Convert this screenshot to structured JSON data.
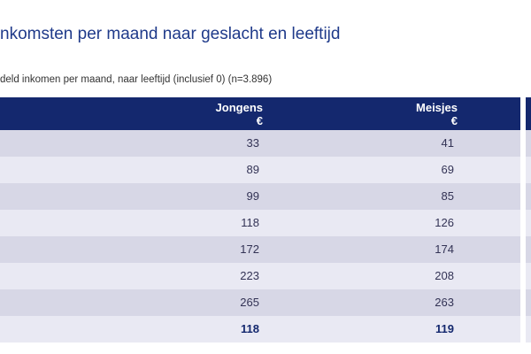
{
  "title": "nkomsten per maand naar geslacht en leeftijd",
  "subtitle": "deld inkomen per maand, naar leeftijd (inclusief 0) (n=3.896)",
  "table": {
    "header": [
      [
        "Jongens",
        "€"
      ],
      [
        "Meisjes",
        "€"
      ]
    ],
    "rows": [
      [
        33,
        41
      ],
      [
        89,
        69
      ],
      [
        99,
        85
      ],
      [
        118,
        126
      ],
      [
        172,
        174
      ],
      [
        223,
        208
      ],
      [
        265,
        263
      ],
      [
        118,
        119
      ]
    ]
  }
}
